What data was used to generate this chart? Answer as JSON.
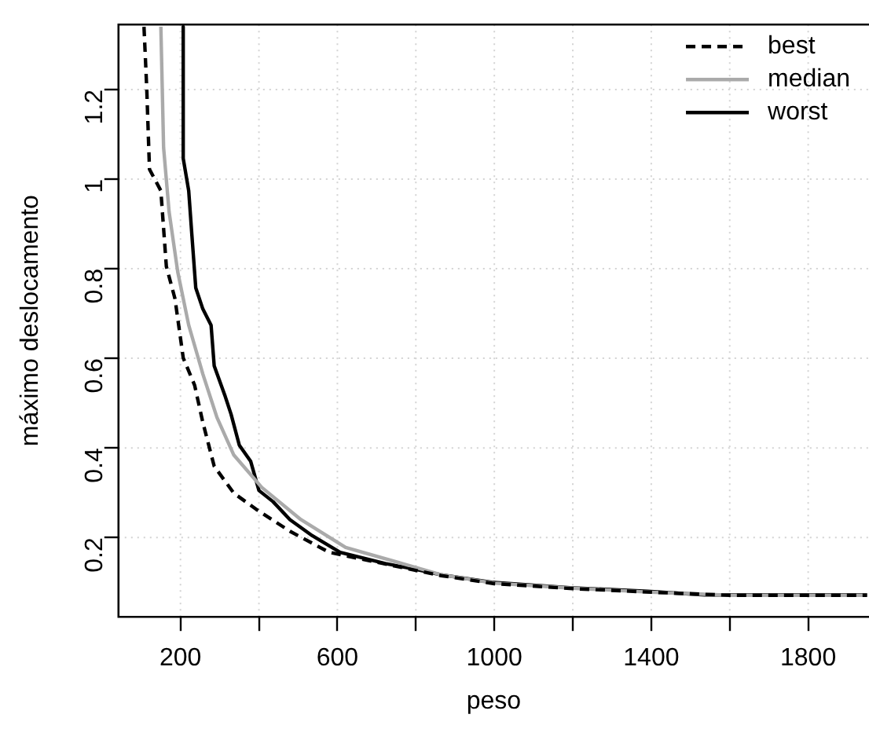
{
  "chart_data": {
    "type": "line",
    "xlabel": "peso",
    "ylabel": "máximo deslocamento",
    "xlim": [
      42,
      1955
    ],
    "ylim": [
      0.023,
      1.345
    ],
    "xticks": [
      200,
      {
        "value": 400,
        "label": null
      },
      600,
      {
        "value": 800,
        "label": null
      },
      1000,
      {
        "value": 1200,
        "label": null
      },
      1400,
      {
        "value": 1600,
        "label": null
      },
      1800
    ],
    "yticks": [
      0.2,
      0.4,
      0.6,
      0.8,
      1,
      1.2
    ],
    "grid": true,
    "legend": "top right",
    "marker": "none",
    "series": [
      {
        "name": "best",
        "color": "#000000",
        "line_style": "dashed",
        "x": [
          107,
          114,
          121,
          150,
          164,
          186,
          207,
          236,
          257,
          286,
          336,
          393,
          479,
          579,
          864,
          1000,
          1200,
          1400,
          1600,
          1950
        ],
        "values": [
          1.34,
          1.203,
          1.022,
          0.974,
          0.805,
          0.733,
          0.601,
          0.54,
          0.457,
          0.359,
          0.299,
          0.263,
          0.214,
          0.167,
          0.115,
          0.097,
          0.086,
          0.078,
          0.071,
          0.071
        ]
      },
      {
        "name": "median",
        "color": "#aaaaaa",
        "line_style": "solid",
        "x": [
          150,
          157,
          171,
          193,
          221,
          257,
          293,
          336,
          407,
          507,
          621,
          864,
          1000,
          1200,
          1400,
          1600,
          1950
        ],
        "values": [
          1.34,
          1.07,
          0.927,
          0.793,
          0.674,
          0.565,
          0.468,
          0.384,
          0.312,
          0.24,
          0.178,
          0.117,
          0.098,
          0.087,
          0.078,
          0.071,
          0.071
        ]
      },
      {
        "name": "worst",
        "color": "#000000",
        "line_style": "solid",
        "x": [
          207,
          207,
          221,
          229,
          239,
          257,
          278,
          286,
          314,
          329,
          350,
          379,
          400,
          436,
          479,
          536,
          607,
          722,
          793,
          864,
          993,
          1193,
          1391,
          1536,
          1950
        ],
        "values": [
          1.34,
          1.046,
          0.974,
          0.876,
          0.757,
          0.71,
          0.674,
          0.583,
          0.515,
          0.475,
          0.406,
          0.37,
          0.305,
          0.28,
          0.24,
          0.204,
          0.167,
          0.142,
          0.13,
          0.117,
          0.1,
          0.088,
          0.08,
          0.072,
          0.072
        ]
      }
    ]
  }
}
